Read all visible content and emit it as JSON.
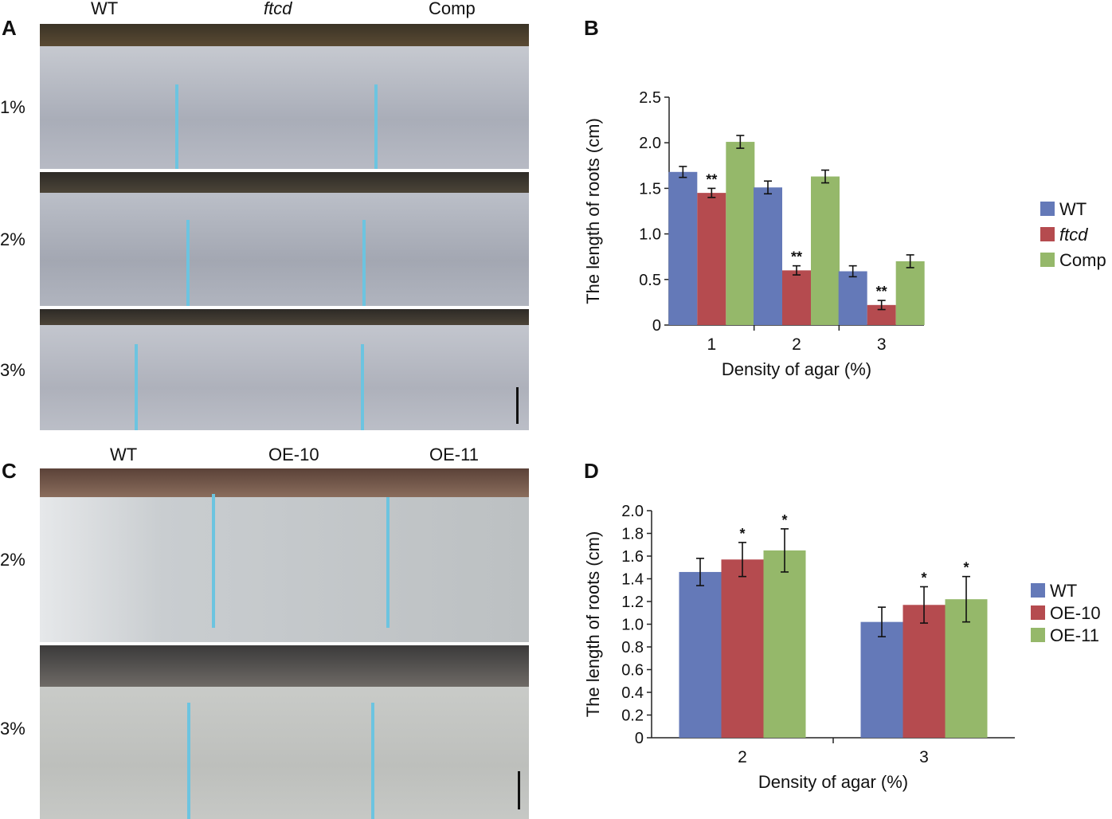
{
  "panel_a": {
    "letter": "A",
    "genotype_labels": [
      "WT",
      "ftcd",
      "Comp"
    ],
    "row_labels": [
      "1%",
      "2%",
      "3%"
    ]
  },
  "panel_c": {
    "letter": "C",
    "genotype_labels": [
      "WT",
      "OE-10",
      "OE-11"
    ],
    "row_labels": [
      "2%",
      "3%"
    ]
  },
  "chart_data": [
    {
      "panel": "B",
      "type": "bar",
      "xlabel": "Density of agar (%)",
      "ylabel": "The length of roots (cm)",
      "categories": [
        "1",
        "2",
        "3"
      ],
      "ylim": [
        0,
        2.5
      ],
      "yticks": [
        "0",
        "0.5",
        "1.0",
        "1.5",
        "2.0",
        "2.5"
      ],
      "legend_position": "right",
      "series": [
        {
          "name": "WT",
          "color": "#6479b8",
          "values": [
            1.68,
            1.51,
            0.59
          ],
          "errors": [
            0.06,
            0.07,
            0.06
          ],
          "marks": [
            "",
            "",
            ""
          ]
        },
        {
          "name": "ftcd",
          "italic": true,
          "color": "#b54b4f",
          "values": [
            1.45,
            0.6,
            0.22
          ],
          "errors": [
            0.05,
            0.05,
            0.05
          ],
          "marks": [
            "**",
            "**",
            "**"
          ]
        },
        {
          "name": "Comp",
          "color": "#95b86a",
          "values": [
            2.01,
            1.63,
            0.7
          ],
          "errors": [
            0.07,
            0.07,
            0.07
          ],
          "marks": [
            "",
            "",
            ""
          ]
        }
      ]
    },
    {
      "panel": "D",
      "type": "bar",
      "xlabel": "Density of agar (%)",
      "ylabel": "The length of roots (cm)",
      "categories": [
        "2",
        "3"
      ],
      "ylim": [
        0,
        2.0
      ],
      "yticks": [
        "0",
        "0.2",
        "0.4",
        "0.6",
        "0.8",
        "1.0",
        "1.2",
        "1.4",
        "1.6",
        "1.8",
        "2.0"
      ],
      "legend_position": "right",
      "series": [
        {
          "name": "WT",
          "color": "#6479b8",
          "values": [
            1.46,
            1.02
          ],
          "errors": [
            0.12,
            0.13
          ],
          "marks": [
            "",
            ""
          ]
        },
        {
          "name": "OE-10",
          "color": "#b54b4f",
          "values": [
            1.57,
            1.17
          ],
          "errors": [
            0.15,
            0.16
          ],
          "marks": [
            "*",
            "*"
          ]
        },
        {
          "name": "OE-11",
          "color": "#95b86a",
          "values": [
            1.65,
            1.22
          ],
          "errors": [
            0.19,
            0.2
          ],
          "marks": [
            "*",
            "*"
          ]
        }
      ]
    }
  ]
}
